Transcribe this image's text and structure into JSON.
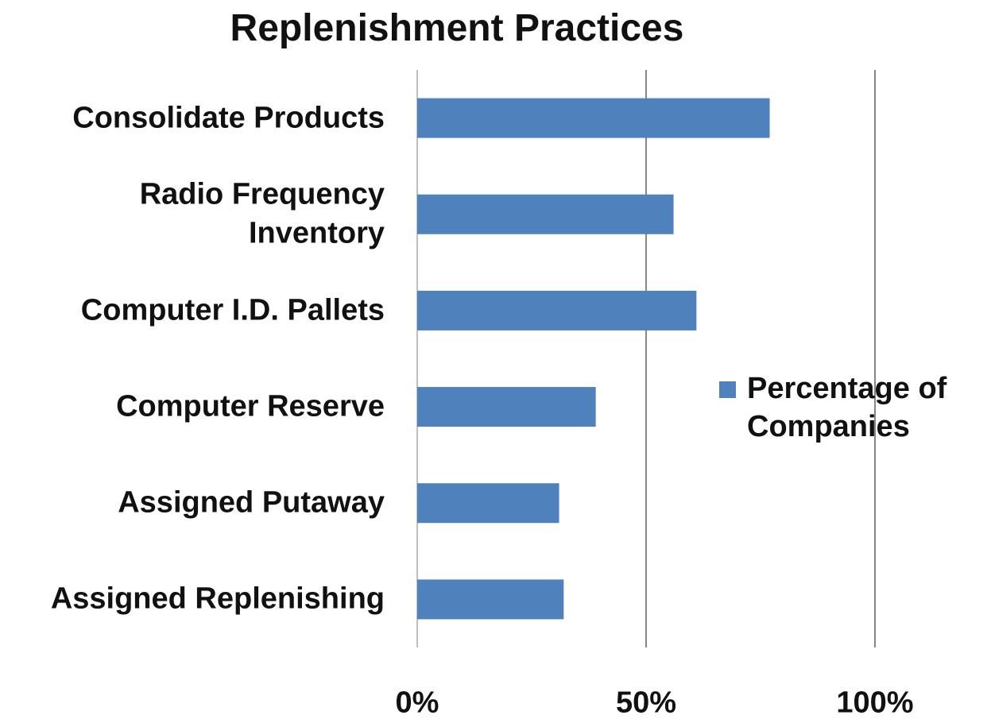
{
  "chart_data": {
    "type": "barh",
    "title": "Replenishment Practices",
    "categories": [
      "Consolidate Products",
      "Radio Frequency Inventory",
      "Computer I.D. Pallets",
      "Computer Reserve",
      "Assigned Putaway",
      "Assigned Replenishing"
    ],
    "series": [
      {
        "name": "Percentage of Companies",
        "color": "#4f81bd",
        "values": [
          77,
          56,
          61,
          39,
          31,
          32
        ]
      }
    ],
    "xlim": [
      0,
      100
    ],
    "xticks": [
      {
        "value": 0,
        "label": "0%"
      },
      {
        "value": 50,
        "label": "50%"
      },
      {
        "value": 100,
        "label": "100%"
      }
    ],
    "grid": true,
    "legend": "right"
  }
}
